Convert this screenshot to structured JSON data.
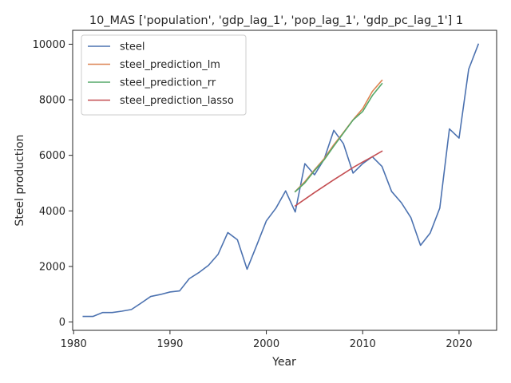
{
  "chart_data": {
    "type": "line",
    "title": "10_MAS ['population', 'gdp_lag_1', 'pop_lag_1', 'gdp_pc_lag_1'] 1",
    "xlabel": "Year",
    "ylabel": "Steel production",
    "xlim": [
      1979.9,
      2023.9
    ],
    "ylim": [
      -300,
      10500
    ],
    "xticks": [
      1980,
      1990,
      2000,
      2010,
      2020
    ],
    "yticks": [
      0,
      2000,
      4000,
      6000,
      8000,
      10000
    ],
    "grid": false,
    "legend_position": "top-left",
    "series": [
      {
        "name": "steel",
        "color": "#4c72b0",
        "points": [
          [
            1981,
            200
          ],
          [
            1982,
            200
          ],
          [
            1983,
            340
          ],
          [
            1984,
            340
          ],
          [
            1985,
            390
          ],
          [
            1986,
            450
          ],
          [
            1987,
            680
          ],
          [
            1988,
            920
          ],
          [
            1989,
            990
          ],
          [
            1990,
            1080
          ],
          [
            1991,
            1120
          ],
          [
            1992,
            1560
          ],
          [
            1993,
            1780
          ],
          [
            1994,
            2040
          ],
          [
            1995,
            2440
          ],
          [
            1996,
            3220
          ],
          [
            1997,
            2960
          ],
          [
            1998,
            1900
          ],
          [
            1999,
            2760
          ],
          [
            2000,
            3640
          ],
          [
            2001,
            4100
          ],
          [
            2002,
            4720
          ],
          [
            2003,
            3960
          ],
          [
            2004,
            5700
          ],
          [
            2005,
            5300
          ],
          [
            2006,
            5860
          ],
          [
            2007,
            6900
          ],
          [
            2008,
            6420
          ],
          [
            2009,
            5360
          ],
          [
            2010,
            5700
          ],
          [
            2011,
            5950
          ],
          [
            2012,
            5600
          ],
          [
            2013,
            4700
          ],
          [
            2014,
            4300
          ],
          [
            2015,
            3760
          ],
          [
            2016,
            2760
          ],
          [
            2017,
            3200
          ],
          [
            2018,
            4100
          ],
          [
            2019,
            6950
          ],
          [
            2020,
            6620
          ],
          [
            2021,
            9100
          ],
          [
            2022,
            10000
          ]
        ]
      },
      {
        "name": "steel_prediction_lm",
        "color": "#dd8452",
        "points": [
          [
            2003,
            4700
          ],
          [
            2004,
            5050
          ],
          [
            2005,
            5480
          ],
          [
            2006,
            5880
          ],
          [
            2007,
            6380
          ],
          [
            2008,
            6820
          ],
          [
            2009,
            7280
          ],
          [
            2010,
            7680
          ],
          [
            2011,
            8300
          ],
          [
            2012,
            8700
          ]
        ]
      },
      {
        "name": "steel_prediction_rr",
        "color": "#55a868",
        "points": [
          [
            2003,
            4690
          ],
          [
            2004,
            5010
          ],
          [
            2005,
            5450
          ],
          [
            2006,
            5840
          ],
          [
            2007,
            6330
          ],
          [
            2008,
            6800
          ],
          [
            2009,
            7270
          ],
          [
            2010,
            7580
          ],
          [
            2011,
            8150
          ],
          [
            2012,
            8580
          ]
        ]
      },
      {
        "name": "steel_prediction_lasso",
        "color": "#c44e52",
        "points": [
          [
            2003,
            4180
          ],
          [
            2004,
            4420
          ],
          [
            2005,
            4660
          ],
          [
            2006,
            4890
          ],
          [
            2007,
            5120
          ],
          [
            2008,
            5340
          ],
          [
            2009,
            5560
          ],
          [
            2010,
            5760
          ],
          [
            2011,
            5950
          ],
          [
            2012,
            6150
          ]
        ]
      }
    ]
  }
}
